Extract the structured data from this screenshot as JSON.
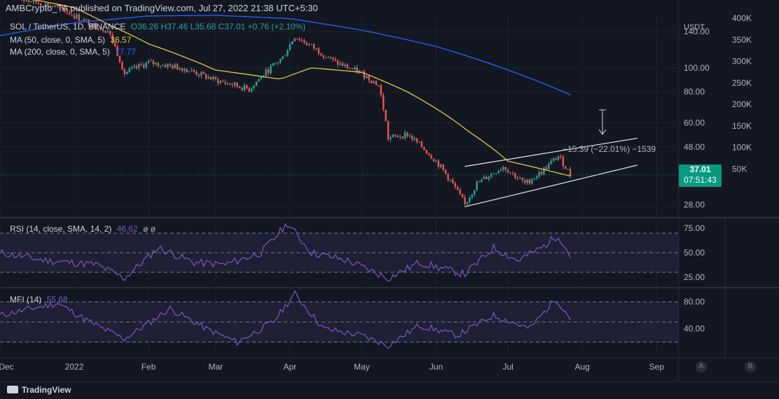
{
  "header": {
    "text": "AMBCrypto_TA published on TradingView.com, Jul 27, 2022 21:38 UTC+5:30"
  },
  "legend": {
    "symbol": "SOL / TetherUS, 1D, BINANCE",
    "ohlc": "O36.26 H37.46 L35.68 C37.01 +0.76 (+2.10%)",
    "ma50_label": "MA (50, close, 0, SMA, 5)",
    "ma50_value": "36.57",
    "ma200_label": "MA (200, close, 0, SMA, 5)",
    "ma200_value": "77.77"
  },
  "colors": {
    "bg": "#131722",
    "up": "#26a69a",
    "down": "#ef5350",
    "ma50": "#e5c740",
    "ma200": "#2962ff",
    "osc": "#7e57c2",
    "price_tag": "#089981"
  },
  "price_axis": {
    "currency": "USDT",
    "ticks": [
      "140.00",
      "100.00",
      "80.00",
      "60.00",
      "48.00",
      "28.00"
    ]
  },
  "volume_axis": {
    "ticks": [
      "400K",
      "350K",
      "300K",
      "250K",
      "200K",
      "150K",
      "100K",
      "50K"
    ]
  },
  "last_price": {
    "value": "37.01",
    "countdown": "07:51:43"
  },
  "measure_label": "−15.39 (−22.01%) −1539",
  "rsi": {
    "label": "RSI (14, close, SMA, 14, 2)",
    "value": "46.62",
    "extra": "ø ø",
    "ticks": [
      "75.00",
      "50.00",
      "25.00"
    ]
  },
  "mfi": {
    "label": "MFI (14)",
    "value": "55.68",
    "ticks": [
      "80.00",
      "40.00"
    ]
  },
  "time_axis": [
    "Dec",
    "2022",
    "Feb",
    "Mar",
    "Apr",
    "May",
    "Jun",
    "Jul",
    "Aug",
    "Sep"
  ],
  "footer": {
    "brand": "TradingView"
  },
  "buttons": {
    "a": "A",
    "b": "B"
  },
  "chart_data": {
    "type": "line",
    "symbol": "SOL/USDT",
    "interval": "1D",
    "x_range": [
      "2021-12-01",
      "2022-09-10"
    ],
    "price_log_scale": true,
    "price_range": [
      25,
      165
    ],
    "price_path_dates": [
      "2021-12-01",
      "2021-12-10",
      "2021-12-25",
      "2022-01-08",
      "2022-01-15",
      "2022-01-22",
      "2022-02-01",
      "2022-02-15",
      "2022-03-01",
      "2022-03-15",
      "2022-03-29",
      "2022-04-03",
      "2022-04-20",
      "2022-05-01",
      "2022-05-08",
      "2022-05-12",
      "2022-05-20",
      "2022-06-01",
      "2022-06-13",
      "2022-06-18",
      "2022-06-29",
      "2022-07-08",
      "2022-07-15",
      "2022-07-22",
      "2022-07-27"
    ],
    "price_path": [
      210,
      190,
      175,
      150,
      141,
      95,
      105,
      100,
      89,
      82,
      110,
      134,
      105,
      95,
      85,
      52,
      54,
      42,
      28,
      34,
      40,
      34,
      38,
      44,
      37
    ],
    "ma50": {
      "dates": [
        "2021-12-01",
        "2022-01-01",
        "2022-01-15",
        "2022-02-01",
        "2022-03-01",
        "2022-03-28",
        "2022-04-10",
        "2022-05-01",
        "2022-05-20",
        "2022-06-15",
        "2022-07-01",
        "2022-07-27"
      ],
      "values": [
        200,
        175,
        150,
        125,
        98,
        90,
        100,
        96,
        80,
        55,
        42,
        36.57
      ]
    },
    "ma200": {
      "dates": [
        "2021-12-01",
        "2022-01-01",
        "2022-02-01",
        "2022-03-01",
        "2022-04-01",
        "2022-05-01",
        "2022-06-01",
        "2022-07-01",
        "2022-07-27"
      ],
      "values": [
        135,
        152,
        162,
        163,
        158,
        142,
        122,
        98,
        77.77
      ]
    },
    "channel": {
      "start_date": "2022-06-13",
      "end_date": "2022-08-24",
      "lower": [
        27.5,
        40.5
      ],
      "upper": [
        40,
        52
      ]
    },
    "rsi_range": [
      15,
      85
    ],
    "rsi_bands": [
      70,
      50,
      30
    ],
    "rsi_dates": [
      "2021-12-01",
      "2021-12-20",
      "2022-01-10",
      "2022-01-22",
      "2022-02-05",
      "2022-02-20",
      "2022-03-05",
      "2022-03-20",
      "2022-03-31",
      "2022-04-10",
      "2022-04-25",
      "2022-05-12",
      "2022-05-25",
      "2022-06-13",
      "2022-06-25",
      "2022-07-05",
      "2022-07-15",
      "2022-07-22",
      "2022-07-27"
    ],
    "rsi_values": [
      50,
      42,
      38,
      24,
      55,
      40,
      38,
      50,
      80,
      50,
      42,
      24,
      40,
      28,
      55,
      42,
      55,
      68,
      46.62
    ],
    "mfi_range": [
      0,
      100
    ],
    "mfi_bands": [
      80,
      50,
      20
    ],
    "mfi_dates": [
      "2021-12-01",
      "2021-12-25",
      "2022-01-10",
      "2022-01-22",
      "2022-02-10",
      "2022-02-25",
      "2022-03-10",
      "2022-03-25",
      "2022-04-03",
      "2022-04-15",
      "2022-05-01",
      "2022-05-12",
      "2022-05-25",
      "2022-06-10",
      "2022-06-25",
      "2022-07-10",
      "2022-07-21",
      "2022-07-27"
    ],
    "mfi_values": [
      60,
      78,
      45,
      25,
      70,
      40,
      20,
      50,
      92,
      40,
      30,
      15,
      45,
      30,
      60,
      40,
      85,
      55.68
    ]
  }
}
